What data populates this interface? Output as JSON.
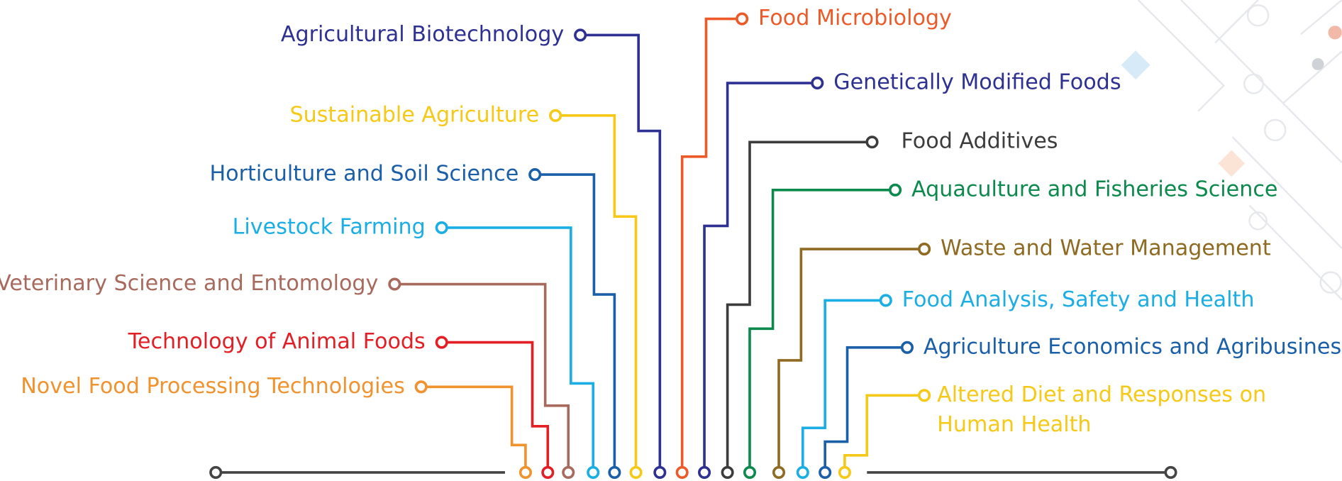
{
  "topics": [
    {
      "label": "Novel Food Processing Technologies"
    },
    {
      "label": "Technology of Animal Foods"
    },
    {
      "label": "Veterinary Science and Entomology"
    },
    {
      "label": "Livestock Farming"
    },
    {
      "label": "Horticulture and Soil Science"
    },
    {
      "label": "Sustainable Agriculture"
    },
    {
      "label": "Agricultural Biotechnology"
    },
    {
      "label": "Food Microbiology"
    },
    {
      "label": "Genetically Modified Foods"
    },
    {
      "label": "Food Additives"
    },
    {
      "label": "Aquaculture and Fisheries Science"
    },
    {
      "label": "Waste and Water Management"
    },
    {
      "label": "Food Analysis, Safety and Health"
    },
    {
      "label": "Agriculture Economics and Agribusiness"
    },
    {
      "lines": [
        "Altered Diet and Responses on",
        "Human Health"
      ]
    }
  ]
}
